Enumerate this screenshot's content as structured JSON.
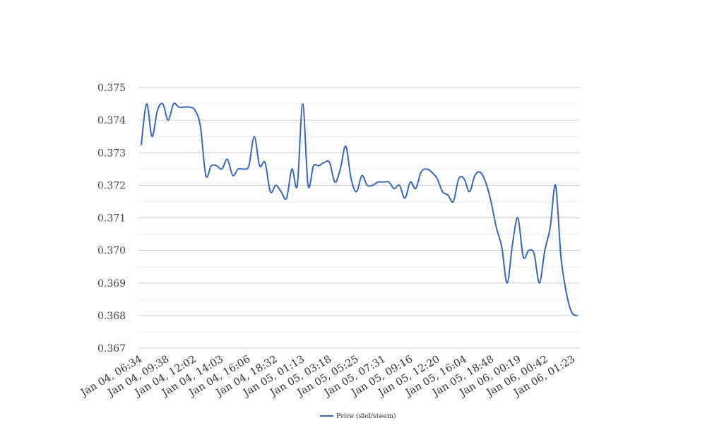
{
  "chart_data": {
    "type": "line",
    "title": "",
    "xlabel": "",
    "ylabel": "",
    "ylim": [
      0.367,
      0.375
    ],
    "y_ticks": [
      "0.367",
      "0.368",
      "0.369",
      "0.370",
      "0.371",
      "0.372",
      "0.373",
      "0.374",
      "0.375"
    ],
    "x_tick_labels": [
      "Jan 04, 06:34",
      "Jan 04, 09:38",
      "Jan 04, 12:02",
      "Jan 04, 14:03",
      "Jan 04, 16:06",
      "Jan 04, 18:32",
      "Jan 05, 01:13",
      "Jan 05, 03:18",
      "Jan 05, 05:25",
      "Jan 05, 07:31",
      "Jan 05, 09:16",
      "Jan 05, 12:20",
      "Jan 05, 16:04",
      "Jan 05, 18:48",
      "Jan 06, 00:19",
      "Jan 06, 00:42",
      "Jan 06, 01:23"
    ],
    "grid": true,
    "legend_position": "bottom",
    "colors": {
      "line": "#3a67b5",
      "grid_major": "#cccccc",
      "grid_minor": "#ececec"
    },
    "series": [
      {
        "name": "Price (sbd/steem)",
        "values": [
          0.37325,
          0.3745,
          0.3735,
          0.3743,
          0.3745,
          0.374,
          0.3745,
          0.3744,
          0.3744,
          0.3744,
          0.3743,
          0.3738,
          0.3723,
          0.3726,
          0.3726,
          0.3725,
          0.3728,
          0.3723,
          0.3725,
          0.3725,
          0.3726,
          0.3735,
          0.3726,
          0.3727,
          0.3718,
          0.372,
          0.3718,
          0.3716,
          0.3725,
          0.372,
          0.3745,
          0.372,
          0.3726,
          0.3726,
          0.3727,
          0.3727,
          0.3721,
          0.3725,
          0.3732,
          0.3722,
          0.3718,
          0.3723,
          0.372,
          0.372,
          0.3721,
          0.3721,
          0.3721,
          0.3719,
          0.372,
          0.3716,
          0.3721,
          0.3719,
          0.3724,
          0.3725,
          0.3724,
          0.3722,
          0.3718,
          0.3717,
          0.3715,
          0.3722,
          0.3722,
          0.3718,
          0.3723,
          0.3724,
          0.3721,
          0.3715,
          0.3707,
          0.3701,
          0.369,
          0.3702,
          0.371,
          0.3698,
          0.37,
          0.3699,
          0.369,
          0.37,
          0.3707,
          0.372,
          0.3698,
          0.3687,
          0.3681,
          0.368
        ]
      }
    ]
  }
}
